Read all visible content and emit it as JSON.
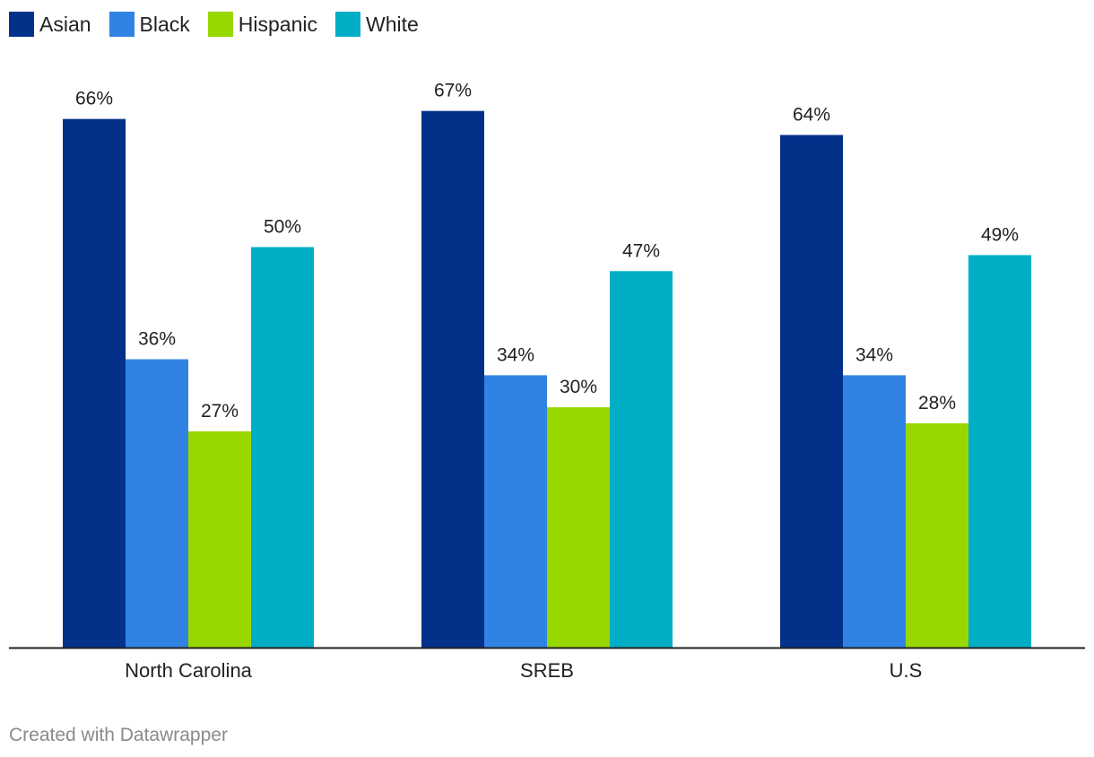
{
  "chart_data": {
    "type": "bar",
    "categories": [
      "North Carolina",
      "SREB",
      "U.S"
    ],
    "series": [
      {
        "name": "Asian",
        "color": "#03318a",
        "values": [
          66,
          67,
          64
        ]
      },
      {
        "name": "Black",
        "color": "#3183e3",
        "values": [
          36,
          34,
          34
        ]
      },
      {
        "name": "Hispanic",
        "color": "#99d700",
        "values": [
          27,
          30,
          28
        ]
      },
      {
        "name": "White",
        "color": "#00aec6",
        "values": [
          50,
          47,
          49
        ]
      }
    ],
    "value_suffix": "%",
    "ylim": [
      0,
      70
    ],
    "legend_position": "top-left",
    "grid": false
  },
  "footer": {
    "credit": "Created with Datawrapper"
  }
}
